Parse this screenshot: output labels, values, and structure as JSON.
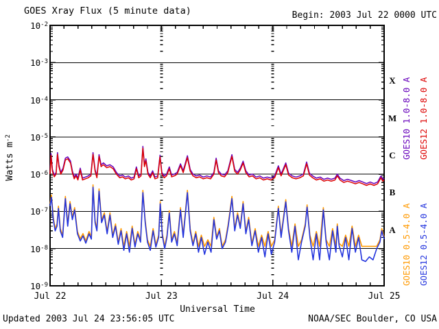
{
  "header": {
    "title": "GOES Xray Flux (5 minute data)",
    "begin_label": "Begin:  2003 Jul 22 0000 UTC"
  },
  "footer": {
    "updated": "Updated 2003 Jul 24 23:56:05 UTC",
    "source": "NOAA/SEC Boulder, CO USA"
  },
  "axes": {
    "ylabel_base": "Watts m",
    "ylabel_sup": "-2",
    "xlabel": "Universal Time",
    "x_ticks": [
      "Jul 22",
      "Jul 23",
      "Jul 24",
      "Jul 25"
    ],
    "y_tick_labels": [
      "10^-2",
      "10^-3",
      "10^-4",
      "10^-5",
      "10^-6",
      "10^-7",
      "10^-8",
      "10^-9"
    ],
    "flux_class_letters": [
      "X",
      "M",
      "C",
      "B",
      "A"
    ]
  },
  "colors": {
    "goes10_long": "#6600bb",
    "goes12_long": "#dd0000",
    "goes10_short": "#ff9900",
    "goes12_short": "#2233dd",
    "axis": "#000000",
    "background": "#ffffff"
  },
  "chart_data": {
    "type": "line",
    "title": "GOES Xray Flux (5 minute data)",
    "xlabel": "Universal Time",
    "ylabel": "Watts m^-2",
    "x_unit": "hours since 2003 Jul 22 0000 UTC",
    "x_range_hours": [
      0,
      72
    ],
    "x_tick_labels": [
      "Jul 22",
      "Jul 23",
      "Jul 24",
      "Jul 25"
    ],
    "x_minor_tick_hours": 3,
    "y_scale": "log",
    "y_range": [
      1e-09,
      0.01
    ],
    "y_decade_gridlines": [
      0.001,
      0.0001,
      1e-05,
      1e-06,
      1e-07,
      1e-08
    ],
    "day_gridlines_hours": [
      24,
      48
    ],
    "flux_classes": [
      {
        "letter": "X",
        "band": [
          0.0001,
          0.001
        ]
      },
      {
        "letter": "M",
        "band": [
          1e-05,
          0.0001
        ]
      },
      {
        "letter": "C",
        "band": [
          1e-06,
          1e-05
        ]
      },
      {
        "letter": "B",
        "band": [
          1e-07,
          1e-06
        ]
      },
      {
        "letter": "A",
        "band": [
          1e-08,
          1e-07
        ]
      }
    ],
    "legend_position": "right-rotated",
    "series": [
      {
        "name": "GOES10 1.0-8.0 A",
        "satellite": "GOES10",
        "channel": "1.0-8.0 A",
        "color": "#6600bb",
        "derived_from": "GOES12 1.0-8.0 A",
        "scale": 1.12,
        "note": "nearly identical to GOES12 long channel; peeks above red line at peaks"
      },
      {
        "name": "GOES12 1.0-8.0 A",
        "satellite": "GOES12",
        "channel": "1.0-8.0 A",
        "color": "#dd0000",
        "points": [
          [
            0,
            1e-06
          ],
          [
            0.2,
            3.2e-06
          ],
          [
            0.5,
            1.2e-06
          ],
          [
            0.9,
            8.5e-07
          ],
          [
            1.3,
            1e-06
          ],
          [
            1.6,
            3.4e-06
          ],
          [
            1.9,
            1.6e-06
          ],
          [
            2.3,
            1e-06
          ],
          [
            2.8,
            1.3e-06
          ],
          [
            3.3,
            2.4e-06
          ],
          [
            3.8,
            2.6e-06
          ],
          [
            4.4,
            2e-06
          ],
          [
            4.8,
            1.1e-06
          ],
          [
            5.2,
            7.5e-07
          ],
          [
            5.6,
            9e-07
          ],
          [
            6.0,
            7e-07
          ],
          [
            6.5,
            1.3e-06
          ],
          [
            7.0,
            7e-07
          ],
          [
            7.6,
            7.5e-07
          ],
          [
            8.2,
            8e-07
          ],
          [
            8.8,
            9e-07
          ],
          [
            9.25,
            3.4e-06
          ],
          [
            9.7,
            1.2e-06
          ],
          [
            10.1,
            8e-07
          ],
          [
            10.55,
            3e-06
          ],
          [
            11.0,
            1.6e-06
          ],
          [
            11.5,
            1.8e-06
          ],
          [
            12.2,
            1.5e-06
          ],
          [
            12.9,
            1.6e-06
          ],
          [
            13.6,
            1.4e-06
          ],
          [
            14.3,
            1e-06
          ],
          [
            15.0,
            8e-07
          ],
          [
            15.6,
            8.5e-07
          ],
          [
            16.2,
            7.5e-07
          ],
          [
            16.9,
            8e-07
          ],
          [
            17.5,
            7e-07
          ],
          [
            18.1,
            7.5e-07
          ],
          [
            18.6,
            1.4e-06
          ],
          [
            19.1,
            8e-07
          ],
          [
            19.6,
            9e-07
          ],
          [
            20.0,
            5e-06
          ],
          [
            20.35,
            1.6e-06
          ],
          [
            20.65,
            2.3e-06
          ],
          [
            21.1,
            1e-06
          ],
          [
            21.6,
            8e-07
          ],
          [
            22.1,
            1.1e-06
          ],
          [
            22.6,
            7.5e-07
          ],
          [
            23.2,
            8e-07
          ],
          [
            23.7,
            2.9e-06
          ],
          [
            24.1,
            1e-06
          ],
          [
            24.6,
            8e-07
          ],
          [
            25.1,
            9e-07
          ],
          [
            25.7,
            1.4e-06
          ],
          [
            26.2,
            8.5e-07
          ],
          [
            26.8,
            9e-07
          ],
          [
            27.4,
            1e-06
          ],
          [
            28.1,
            1.7e-06
          ],
          [
            28.7,
            1.1e-06
          ],
          [
            29.6,
            2.8e-06
          ],
          [
            30.2,
            1.2e-06
          ],
          [
            30.8,
            9e-07
          ],
          [
            31.5,
            8e-07
          ],
          [
            32.2,
            8.5e-07
          ],
          [
            33.0,
            7.5e-07
          ],
          [
            33.8,
            8e-07
          ],
          [
            34.6,
            7.5e-07
          ],
          [
            35.3,
            1e-06
          ],
          [
            35.8,
            2.4e-06
          ],
          [
            36.3,
            1.1e-06
          ],
          [
            36.9,
            9e-07
          ],
          [
            37.6,
            8.5e-07
          ],
          [
            38.3,
            1.1e-06
          ],
          [
            39.2,
            3e-06
          ],
          [
            39.8,
            1.2e-06
          ],
          [
            40.4,
            1e-06
          ],
          [
            41.0,
            1.3e-06
          ],
          [
            41.6,
            2e-06
          ],
          [
            42.2,
            1.1e-06
          ],
          [
            42.9,
            8.5e-07
          ],
          [
            43.6,
            9e-07
          ],
          [
            44.4,
            7.5e-07
          ],
          [
            45.2,
            8e-07
          ],
          [
            46.0,
            7e-07
          ],
          [
            46.8,
            7.5e-07
          ],
          [
            47.6,
            7e-07
          ],
          [
            48.4,
            8e-07
          ],
          [
            49.2,
            1.5e-06
          ],
          [
            49.8,
            9e-07
          ],
          [
            50.8,
            1.8e-06
          ],
          [
            51.4,
            9.5e-07
          ],
          [
            52.2,
            8e-07
          ],
          [
            53.0,
            7.5e-07
          ],
          [
            53.8,
            8e-07
          ],
          [
            54.6,
            9e-07
          ],
          [
            55.3,
            1.9e-06
          ],
          [
            55.9,
            9.5e-07
          ],
          [
            56.6,
            8e-07
          ],
          [
            57.4,
            7e-07
          ],
          [
            58.2,
            7.5e-07
          ],
          [
            59.0,
            6.5e-07
          ],
          [
            59.8,
            7e-07
          ],
          [
            60.6,
            6.5e-07
          ],
          [
            61.4,
            7e-07
          ],
          [
            61.9,
            9e-07
          ],
          [
            62.5,
            7e-07
          ],
          [
            63.3,
            6e-07
          ],
          [
            64.1,
            6.5e-07
          ],
          [
            65.0,
            6e-07
          ],
          [
            65.8,
            5.5e-07
          ],
          [
            66.6,
            6e-07
          ],
          [
            67.4,
            5.5e-07
          ],
          [
            68.2,
            5e-07
          ],
          [
            69.0,
            5.5e-07
          ],
          [
            69.8,
            5e-07
          ],
          [
            70.6,
            5.5e-07
          ],
          [
            71.3,
            8e-07
          ],
          [
            71.7,
            6.5e-07
          ],
          [
            72,
            7e-07
          ]
        ]
      },
      {
        "name": "GOES10 0.5-4.0 A",
        "satellite": "GOES10",
        "channel": "0.5-4.0 A",
        "color": "#ff9900",
        "derived_from": "GOES12 0.5-4.0 A",
        "scale": 1.15,
        "floor": 1.15e-08,
        "note": "tracks GOES12 short channel with ~1e-8 floor visible during blue dips"
      },
      {
        "name": "GOES12 0.5-4.0 A",
        "satellite": "GOES12",
        "channel": "0.5-4.0 A",
        "color": "#2233dd",
        "points": [
          [
            0,
            1.4e-07
          ],
          [
            0.3,
            2.4e-07
          ],
          [
            0.7,
            6e-08
          ],
          [
            1.1,
            3e-08
          ],
          [
            1.5,
            4e-08
          ],
          [
            1.8,
            1.2e-07
          ],
          [
            2.2,
            3e-08
          ],
          [
            2.7,
            2e-08
          ],
          [
            3.3,
            2.2e-07
          ],
          [
            3.8,
            4e-08
          ],
          [
            4.3,
            1.6e-07
          ],
          [
            4.8,
            6e-08
          ],
          [
            5.3,
            1.1e-07
          ],
          [
            5.9,
            2.5e-08
          ],
          [
            6.5,
            1.6e-08
          ],
          [
            7.1,
            2.2e-08
          ],
          [
            7.7,
            1.4e-08
          ],
          [
            8.4,
            2.5e-08
          ],
          [
            8.9,
            1.8e-08
          ],
          [
            9.25,
            4.5e-07
          ],
          [
            9.7,
            5e-08
          ],
          [
            10.1,
            3e-08
          ],
          [
            10.55,
            3.5e-07
          ],
          [
            11.1,
            5e-08
          ],
          [
            11.7,
            8e-08
          ],
          [
            12.3,
            2.5e-08
          ],
          [
            12.9,
            8e-08
          ],
          [
            13.5,
            2e-08
          ],
          [
            14.1,
            4e-08
          ],
          [
            14.7,
            1.3e-08
          ],
          [
            15.3,
            3e-08
          ],
          [
            15.9,
            9e-09
          ],
          [
            16.5,
            2.5e-08
          ],
          [
            17.1,
            8e-09
          ],
          [
            17.7,
            3.5e-08
          ],
          [
            18.3,
            1.1e-08
          ],
          [
            18.9,
            2.5e-08
          ],
          [
            19.5,
            1.5e-08
          ],
          [
            20.0,
            3.2e-07
          ],
          [
            20.5,
            5e-08
          ],
          [
            21.0,
            1.5e-08
          ],
          [
            21.6,
            9e-09
          ],
          [
            22.2,
            3e-08
          ],
          [
            22.8,
            1.1e-08
          ],
          [
            23.4,
            2e-08
          ],
          [
            23.75,
            1.6e-07
          ],
          [
            24.2,
            2.2e-08
          ],
          [
            24.7,
            1e-08
          ],
          [
            25.2,
            2e-08
          ],
          [
            25.7,
            9e-08
          ],
          [
            26.2,
            1.5e-08
          ],
          [
            26.8,
            2.5e-08
          ],
          [
            27.4,
            1.2e-08
          ],
          [
            28.1,
            1.1e-07
          ],
          [
            28.7,
            2e-08
          ],
          [
            29.6,
            3.2e-07
          ],
          [
            30.2,
            3e-08
          ],
          [
            30.8,
            1.2e-08
          ],
          [
            31.4,
            2.5e-08
          ],
          [
            32.0,
            8e-09
          ],
          [
            32.6,
            2e-08
          ],
          [
            33.3,
            7e-09
          ],
          [
            34.0,
            1.5e-08
          ],
          [
            34.7,
            8e-09
          ],
          [
            35.3,
            6e-08
          ],
          [
            35.9,
            1.8e-08
          ],
          [
            36.5,
            3e-08
          ],
          [
            37.1,
            1e-08
          ],
          [
            37.8,
            1.5e-08
          ],
          [
            38.4,
            4e-08
          ],
          [
            39.2,
            2.2e-07
          ],
          [
            39.8,
            3e-08
          ],
          [
            40.4,
            8e-08
          ],
          [
            41.0,
            3.5e-08
          ],
          [
            41.6,
            1.6e-07
          ],
          [
            42.2,
            2.5e-08
          ],
          [
            42.8,
            6e-08
          ],
          [
            43.5,
            1.2e-08
          ],
          [
            44.2,
            3e-08
          ],
          [
            44.9,
            8e-09
          ],
          [
            45.6,
            2e-08
          ],
          [
            46.3,
            6e-09
          ],
          [
            47.0,
            2.5e-08
          ],
          [
            47.7,
            7e-09
          ],
          [
            48.4,
            1.5e-08
          ],
          [
            49.2,
            1.2e-07
          ],
          [
            49.8,
            2e-08
          ],
          [
            50.8,
            1.8e-07
          ],
          [
            51.4,
            3e-08
          ],
          [
            52.1,
            8e-09
          ],
          [
            52.8,
            4e-08
          ],
          [
            53.5,
            5e-09
          ],
          [
            54.2,
            1.5e-08
          ],
          [
            55.0,
            4e-08
          ],
          [
            55.4,
            1.3e-07
          ],
          [
            56.0,
            2e-08
          ],
          [
            56.7,
            5e-09
          ],
          [
            57.4,
            2.5e-08
          ],
          [
            58.1,
            5e-09
          ],
          [
            58.9,
            1.1e-07
          ],
          [
            59.5,
            1.5e-08
          ],
          [
            60.2,
            5e-09
          ],
          [
            60.9,
            3e-08
          ],
          [
            61.6,
            8e-09
          ],
          [
            61.9,
            4e-08
          ],
          [
            62.3,
            1.2e-08
          ],
          [
            63.0,
            6e-09
          ],
          [
            63.7,
            2e-08
          ],
          [
            64.4,
            5e-09
          ],
          [
            65.1,
            3.5e-08
          ],
          [
            65.8,
            8e-09
          ],
          [
            66.5,
            2e-08
          ],
          [
            67.2,
            5e-09
          ],
          [
            68.0,
            4.5e-09
          ],
          [
            68.8,
            6e-09
          ],
          [
            69.6,
            5e-09
          ],
          [
            70.4,
            1e-08
          ],
          [
            71.1,
            1.5e-08
          ],
          [
            71.5,
            3e-08
          ],
          [
            72,
            1.8e-08
          ]
        ]
      }
    ]
  }
}
